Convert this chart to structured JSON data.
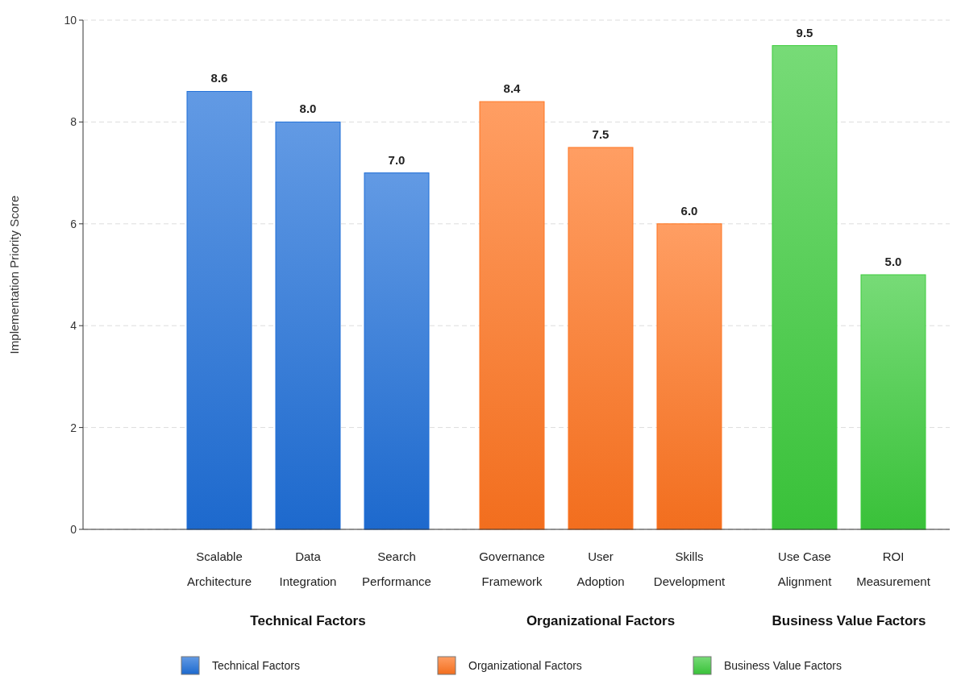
{
  "chart_data": {
    "type": "bar",
    "ylabel": "Implementation Priority Score",
    "categories": [
      "Scalable Architecture",
      "Data Integration",
      "Search Performance",
      "Governance Framework",
      "User Adoption",
      "Skills Development",
      "Use Case Alignment",
      "ROI Measurement"
    ],
    "series": [
      {
        "name": "Technical Factors",
        "color": "#1f6fd8",
        "values": [
          8.6,
          8.0,
          7.0,
          null,
          null,
          null,
          null,
          null
        ],
        "value_labels": [
          "8.6",
          "8.0",
          "7.0",
          null,
          null,
          null,
          null,
          null
        ]
      },
      {
        "name": "Organizational Factors",
        "color": "#ff7420",
        "values": [
          null,
          null,
          null,
          8.4,
          7.5,
          6.0,
          null,
          null
        ],
        "value_labels": [
          null,
          null,
          null,
          "8.4",
          "7.5",
          "6.0",
          null,
          null
        ]
      },
      {
        "name": "Business Value Factors",
        "color": "#3ccc3c",
        "values": [
          null,
          null,
          null,
          null,
          null,
          null,
          9.5,
          5.0
        ],
        "value_labels": [
          null,
          null,
          null,
          null,
          null,
          null,
          "9.5",
          "5.0"
        ]
      }
    ],
    "ylim": [
      0,
      10
    ],
    "yticks": [
      0,
      2,
      4,
      6,
      8,
      10
    ],
    "grid": "y",
    "legend": "bottom"
  }
}
